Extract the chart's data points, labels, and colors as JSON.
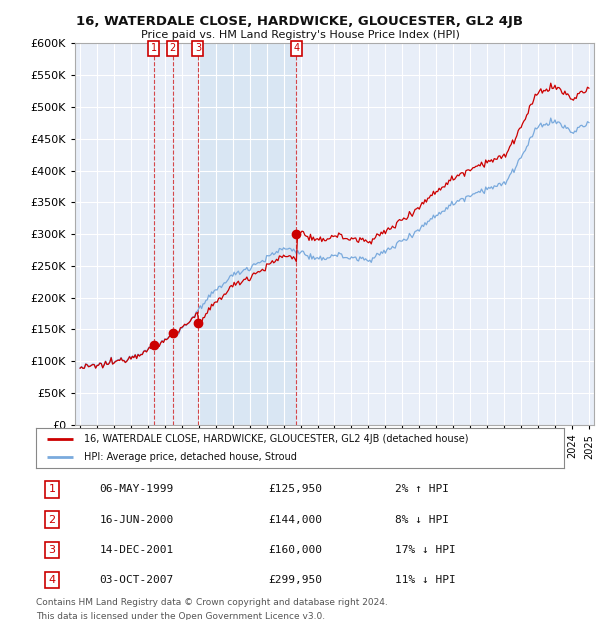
{
  "title": "16, WATERDALE CLOSE, HARDWICKE, GLOUCESTER, GL2 4JB",
  "subtitle": "Price paid vs. HM Land Registry's House Price Index (HPI)",
  "background_color": "#ffffff",
  "plot_bg_color": "#e8eef8",
  "shade_color": "#dce8f5",
  "grid_color": "#ffffff",
  "hpi_color": "#7aaadd",
  "sale_color": "#cc0000",
  "ylim": [
    0,
    600000
  ],
  "yticks": [
    0,
    50000,
    100000,
    150000,
    200000,
    250000,
    300000,
    350000,
    400000,
    450000,
    500000,
    550000,
    600000
  ],
  "xlim": [
    1994.7,
    2025.3
  ],
  "sales": [
    {
      "date_label": "06-MAY-1999",
      "date_x": 1999.35,
      "price": 125950,
      "label": "1"
    },
    {
      "date_label": "16-JUN-2000",
      "date_x": 2000.45,
      "price": 144000,
      "label": "2"
    },
    {
      "date_label": "14-DEC-2001",
      "date_x": 2001.95,
      "price": 160000,
      "label": "3"
    },
    {
      "date_label": "03-OCT-2007",
      "date_x": 2007.75,
      "price": 299950,
      "label": "4"
    }
  ],
  "shade_x0": 2001.95,
  "shade_x1": 2007.75,
  "legend_line1": "16, WATERDALE CLOSE, HARDWICKE, GLOUCESTER, GL2 4JB (detached house)",
  "legend_line2": "HPI: Average price, detached house, Stroud",
  "footer1": "Contains HM Land Registry data © Crown copyright and database right 2024.",
  "footer2": "This data is licensed under the Open Government Licence v3.0.",
  "table_rows": [
    {
      "num": "1",
      "date": "06-MAY-1999",
      "price": "£125,950",
      "pct": "2% ↑ HPI"
    },
    {
      "num": "2",
      "date": "16-JUN-2000",
      "price": "£144,000",
      "pct": "8% ↓ HPI"
    },
    {
      "num": "3",
      "date": "14-DEC-2001",
      "price": "£160,000",
      "pct": "17% ↓ HPI"
    },
    {
      "num": "4",
      "date": "03-OCT-2007",
      "price": "£299,950",
      "pct": "11% ↓ HPI"
    }
  ]
}
